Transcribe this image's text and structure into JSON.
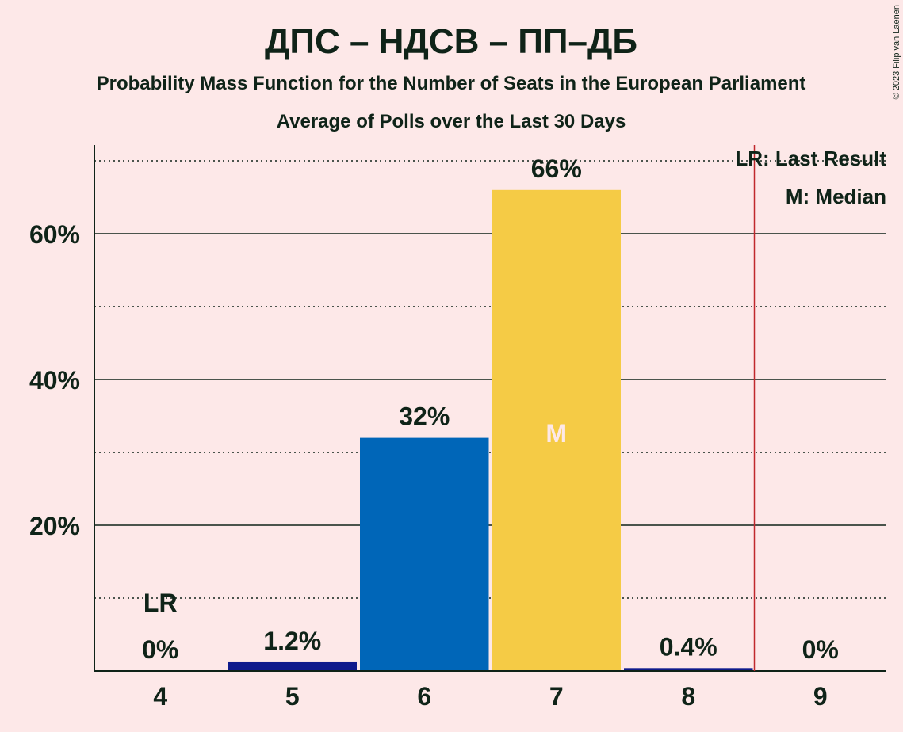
{
  "chart_data": {
    "type": "bar",
    "title": "ДПС – НДСВ – ПП–ДБ",
    "subtitle": "Probability Mass Function for the Number of Seats in the European Parliament",
    "subtitle2": "Average of Polls over the Last 30 Days",
    "copyright": "© 2023 Filip van Laenen",
    "categories": [
      "4",
      "5",
      "6",
      "7",
      "8",
      "9"
    ],
    "values": [
      0,
      1.2,
      32,
      66,
      0.4,
      0
    ],
    "value_labels": [
      "0%",
      "1.2%",
      "32%",
      "66%",
      "0.4%",
      "0%"
    ],
    "bar_colors": [
      "#0E1A8C",
      "#0E1A8C",
      "#0066B8",
      "#F5CB45",
      "#0E1A8C",
      "#0E1A8C"
    ],
    "ylim": [
      0,
      72
    ],
    "yticks": [
      20,
      40,
      60
    ],
    "ytick_labels": [
      "20%",
      "40%",
      "60%"
    ],
    "minor_gridlines": [
      10,
      30,
      50,
      70
    ],
    "last_result": {
      "category": "4",
      "marker": "LR"
    },
    "median": {
      "category": "7",
      "marker": "M"
    },
    "majority_line_between": [
      "8",
      "9"
    ],
    "legend": [
      "LR: Last Result",
      "M: Median"
    ],
    "legend_placement": "top-right",
    "colors": {
      "background": "#FDE8E8",
      "text": "#0F2318",
      "majority_line": "#C0282D",
      "median_text": "#FDE8E8"
    }
  }
}
